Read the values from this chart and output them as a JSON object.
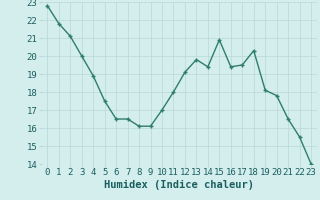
{
  "xlabel": "Humidex (Indice chaleur)",
  "x": [
    0,
    1,
    2,
    3,
    4,
    5,
    6,
    7,
    8,
    9,
    10,
    11,
    12,
    13,
    14,
    15,
    16,
    17,
    18,
    19,
    20,
    21,
    22,
    23
  ],
  "y": [
    22.8,
    21.8,
    21.1,
    20.0,
    18.9,
    17.5,
    16.5,
    16.5,
    16.1,
    16.1,
    17.0,
    18.0,
    19.1,
    19.8,
    19.4,
    20.9,
    19.4,
    19.5,
    20.3,
    18.1,
    17.8,
    16.5,
    15.5,
    14.0
  ],
  "ylim": [
    14,
    23
  ],
  "xlim": [
    -0.5,
    23.5
  ],
  "yticks": [
    14,
    15,
    16,
    17,
    18,
    19,
    20,
    21,
    22,
    23
  ],
  "xticks": [
    0,
    1,
    2,
    3,
    4,
    5,
    6,
    7,
    8,
    9,
    10,
    11,
    12,
    13,
    14,
    15,
    16,
    17,
    18,
    19,
    20,
    21,
    22,
    23
  ],
  "line_color": "#2e7d6e",
  "marker": "+",
  "bg_color": "#d4eded",
  "grid_color": "#b8d8d8",
  "label_color": "#1a5f5f",
  "xlabel_fontsize": 7.5,
  "tick_fontsize": 6.5,
  "linewidth": 1.0,
  "markersize": 3.5,
  "markeredgewidth": 1.0
}
